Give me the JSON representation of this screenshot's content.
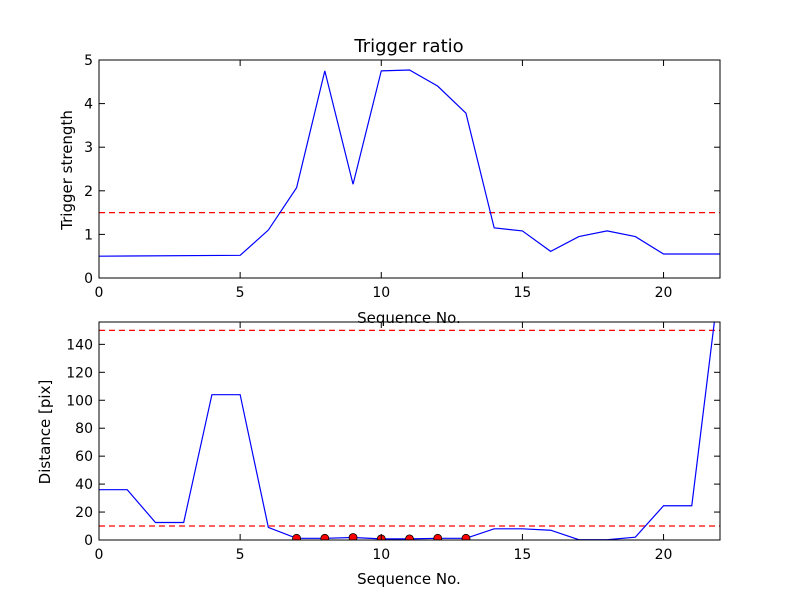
{
  "chart_data": [
    {
      "type": "line",
      "title": "Trigger ratio",
      "xlabel": "Sequence No.",
      "ylabel": "Trigger strength",
      "xlim": [
        0,
        22
      ],
      "ylim": [
        0,
        5
      ],
      "xticks": [
        0,
        5,
        10,
        15,
        20
      ],
      "yticks": [
        0,
        1,
        2,
        3,
        4,
        5
      ],
      "grid": false,
      "series": [
        {
          "color": "#0000ff",
          "style": "solid",
          "x": [
            0,
            5,
            6,
            7,
            8,
            9,
            10,
            11,
            12,
            13,
            14,
            15,
            16,
            17,
            18,
            19,
            20,
            21,
            22
          ],
          "y": [
            0.5,
            0.52,
            1.1,
            2.07,
            4.75,
            2.15,
            4.75,
            4.77,
            4.4,
            3.78,
            1.15,
            1.08,
            0.61,
            0.95,
            1.08,
            0.95,
            0.55,
            0.55,
            0.55
          ]
        }
      ],
      "hlines": [
        {
          "y": 1.5,
          "color": "#ff0000",
          "style": "dashed"
        }
      ]
    },
    {
      "type": "line",
      "title": "",
      "xlabel": "Sequence No.",
      "ylabel": "Distance [pix]",
      "xlim": [
        0,
        22
      ],
      "ylim": [
        0,
        156
      ],
      "xticks": [
        0,
        5,
        10,
        15,
        20
      ],
      "yticks": [
        0,
        20,
        40,
        60,
        80,
        100,
        120,
        140
      ],
      "grid": false,
      "series": [
        {
          "color": "#0000ff",
          "style": "solid",
          "x": [
            0,
            1,
            2,
            3,
            4,
            5,
            6,
            7,
            8,
            9,
            10,
            11,
            12,
            13,
            14,
            15,
            16,
            17,
            18,
            19,
            20,
            21,
            21.8
          ],
          "y": [
            36,
            36,
            12.5,
            12.5,
            104,
            104,
            9,
            1.2,
            1.2,
            1.8,
            0.8,
            0.8,
            1.2,
            1.2,
            8,
            8,
            7,
            0.2,
            0.2,
            2,
            24.5,
            24.5,
            156
          ]
        }
      ],
      "markers": {
        "color": "#ff0000",
        "x": [
          7,
          8,
          9,
          10,
          11,
          12,
          13
        ],
        "y": [
          1.2,
          1.2,
          1.8,
          0.8,
          0.8,
          1.2,
          1.2
        ]
      },
      "hlines": [
        {
          "y": 10,
          "color": "#ff0000",
          "style": "dashed"
        },
        {
          "y": 150,
          "color": "#ff0000",
          "style": "dashed"
        }
      ]
    }
  ]
}
